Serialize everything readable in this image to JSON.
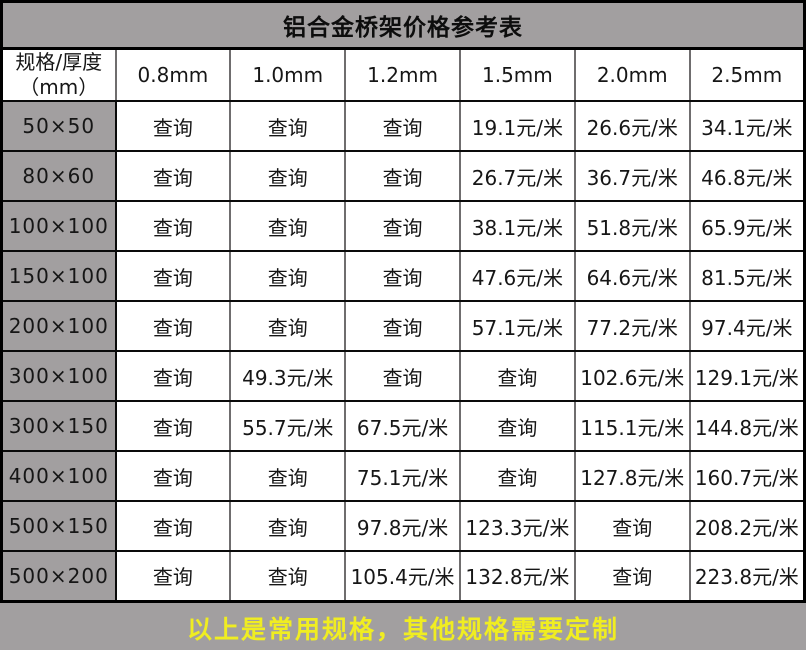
{
  "chart_data": {
    "type": "table",
    "title": "铝合金桥架价格参考表",
    "corner_header": "规格/厚度\n（mm）",
    "columns": [
      "0.8mm",
      "1.0mm",
      "1.2mm",
      "1.5mm",
      "2.0mm",
      "2.5mm"
    ],
    "query_label": "查询",
    "rows": [
      {
        "spec": "50×50",
        "values": [
          "查询",
          "查询",
          "查询",
          "19.1元/米",
          "26.6元/米",
          "34.1元/米"
        ]
      },
      {
        "spec": "80×60",
        "values": [
          "查询",
          "查询",
          "查询",
          "26.7元/米",
          "36.7元/米",
          "46.8元/米"
        ]
      },
      {
        "spec": "100×100",
        "values": [
          "查询",
          "查询",
          "查询",
          "38.1元/米",
          "51.8元/米",
          "65.9元/米"
        ]
      },
      {
        "spec": "150×100",
        "values": [
          "查询",
          "查询",
          "查询",
          "47.6元/米",
          "64.6元/米",
          "81.5元/米"
        ]
      },
      {
        "spec": "200×100",
        "values": [
          "查询",
          "查询",
          "查询",
          "57.1元/米",
          "77.2元/米",
          "97.4元/米"
        ]
      },
      {
        "spec": "300×100",
        "values": [
          "查询",
          "49.3元/米",
          "查询",
          "查询",
          "102.6元/米",
          "129.1元/米"
        ]
      },
      {
        "spec": "300×150",
        "values": [
          "查询",
          "55.7元/米",
          "67.5元/米",
          "查询",
          "115.1元/米",
          "144.8元/米"
        ]
      },
      {
        "spec": "400×100",
        "values": [
          "查询",
          "查询",
          "75.1元/米",
          "查询",
          "127.8元/米",
          "160.7元/米"
        ]
      },
      {
        "spec": "500×150",
        "values": [
          "查询",
          "查询",
          "97.8元/米",
          "123.3元/米",
          "查询",
          "208.2元/米"
        ]
      },
      {
        "spec": "500×200",
        "values": [
          "查询",
          "查询",
          "105.4元/米",
          "132.8元/米",
          "查询",
          "223.8元/米"
        ]
      }
    ],
    "footer_note": "以上是常用规格，其他规格需要定制",
    "layout": {
      "legend": "none",
      "grid": "on"
    }
  },
  "colors": {
    "header_bg": "#a29fa0",
    "price_red": "#fe0000",
    "footer_yellow": "#f0ed21",
    "cell_bg": "#ffffff",
    "border": "#000000"
  }
}
